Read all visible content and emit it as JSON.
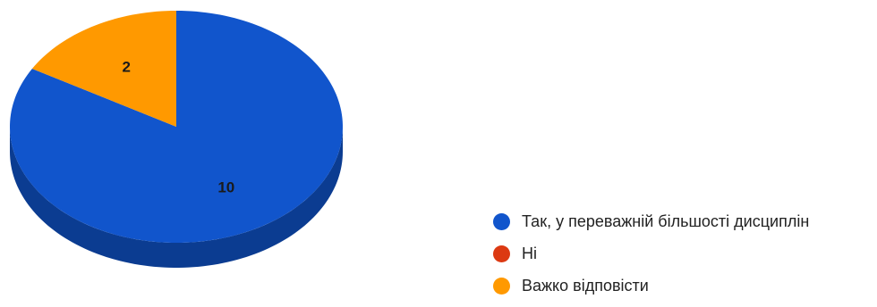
{
  "chart_data": {
    "type": "pie",
    "title": "",
    "three_d": true,
    "legend_position": "bottom-right",
    "categories": [
      "Так, у переважній більшості дисциплін",
      "Ні",
      "Важко відповісти"
    ],
    "values": [
      10,
      0,
      2
    ],
    "data_labels": [
      "10",
      "",
      "2"
    ],
    "colors": [
      "#1155cc",
      "#dc3912",
      "#ff9900"
    ],
    "side_colors": [
      "#0b3c91",
      "#a12a0d",
      "#c27400"
    ]
  },
  "legend": {
    "items": [
      {
        "label": "Так, у переважній більшості дисциплін",
        "color": "#1155cc"
      },
      {
        "label": "Ні",
        "color": "#dc3912"
      },
      {
        "label": "Важко відповісти",
        "color": "#ff9900"
      }
    ]
  }
}
